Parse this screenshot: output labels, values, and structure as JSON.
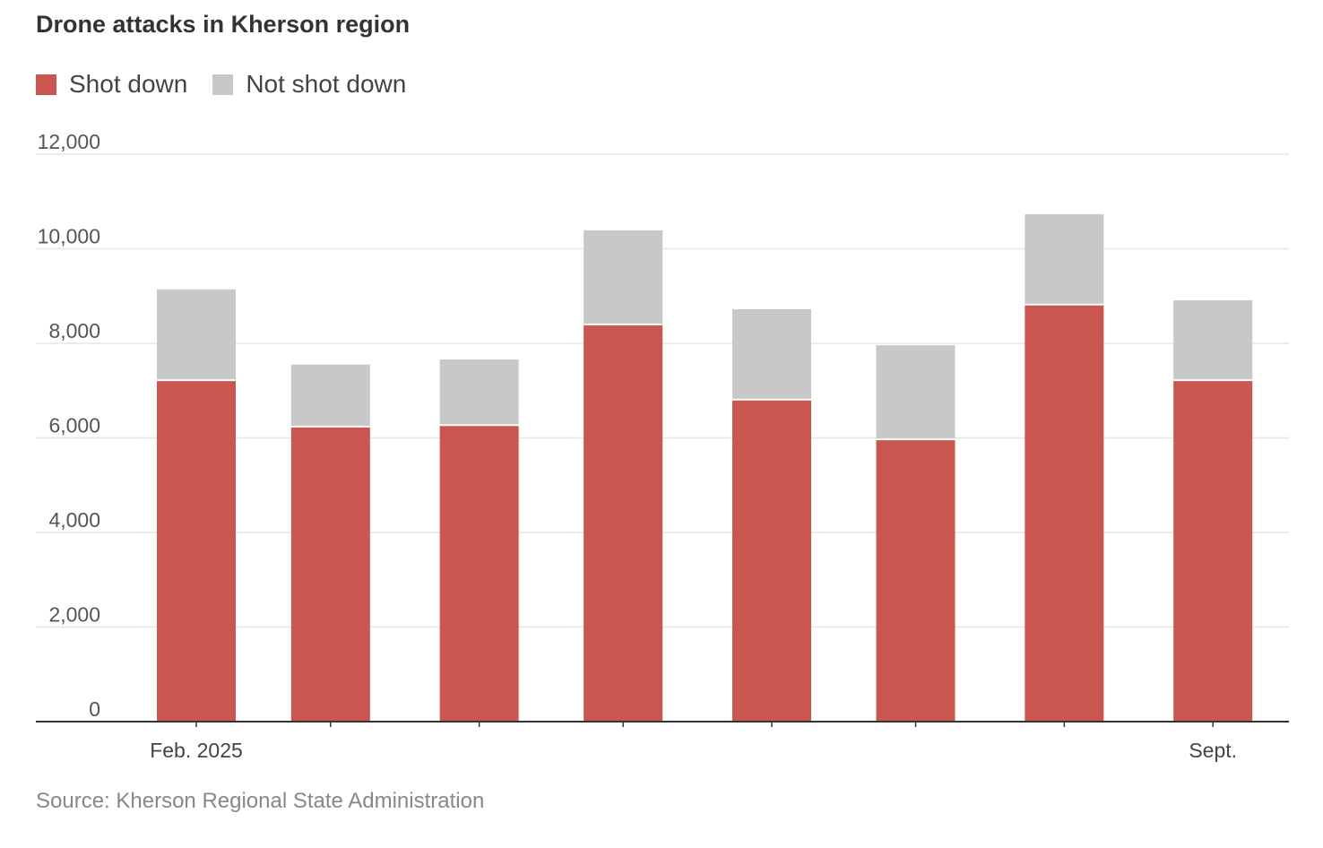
{
  "chart_data": {
    "type": "bar",
    "stacked": true,
    "title": "Drone attacks in Kherson region",
    "x": [
      "2025-02",
      "2025-03",
      "2025-04",
      "2025-05",
      "2025-06",
      "2025-07",
      "2025-08",
      "2025-09"
    ],
    "tick_labels": [
      "Feb. 2025",
      "",
      "",
      "",
      "",
      "",
      "",
      "Sept."
    ],
    "series": [
      {
        "name": "Shot down",
        "color": "#c9574f",
        "values": [
          7220,
          6240,
          6270,
          8400,
          6810,
          5970,
          8820,
          7220
        ]
      },
      {
        "name": "Not shot down",
        "color": "#c8c8c8",
        "values": [
          1920,
          1310,
          1390,
          1990,
          1910,
          1990,
          1910,
          1690
        ]
      }
    ],
    "yticks": [
      "0",
      "2,000",
      "4,000",
      "6,000",
      "8,000",
      "10,000",
      "12,000"
    ],
    "ylim": [
      0,
      12000
    ],
    "grid": true,
    "legend": "top-left",
    "source": "Source: Kherson Regional State Administration"
  }
}
